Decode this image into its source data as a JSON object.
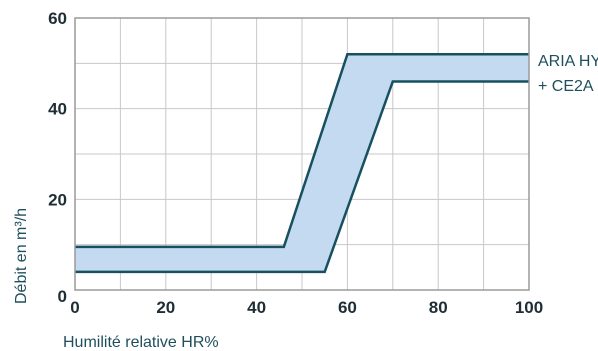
{
  "chart_data": {
    "type": "area",
    "title": "",
    "xlabel": "Humilité relative HR%",
    "ylabel": "Débit en m³/h",
    "xlim": [
      0,
      100
    ],
    "ylim": [
      0,
      60
    ],
    "xticks": [
      0,
      20,
      40,
      60,
      80,
      100
    ],
    "yticks": [
      0,
      20,
      40,
      60
    ],
    "x_tick_labels": [
      "0",
      "20",
      "40",
      "60",
      "80",
      "100"
    ],
    "y_tick_labels": [
      "0",
      "20",
      "40",
      "60"
    ],
    "grid": true,
    "grid_x_step": 10,
    "grid_y_step": 10,
    "series": [
      {
        "name": "ARIA HY + CE2A",
        "upper": {
          "x": [
            0,
            46,
            60,
            100
          ],
          "y": [
            9.5,
            9.5,
            52,
            52
          ]
        },
        "lower": {
          "x": [
            0,
            55,
            70,
            100
          ],
          "y": [
            4,
            4,
            46,
            46
          ]
        }
      }
    ],
    "legend": {
      "line1": "ARIA HY",
      "line2": "+ CE2A",
      "placement": "right"
    },
    "colors": {
      "fill": "#c3daf0",
      "line": "#17505f",
      "grid": "#c8c8c8",
      "frame": "#9a9a9a"
    }
  }
}
